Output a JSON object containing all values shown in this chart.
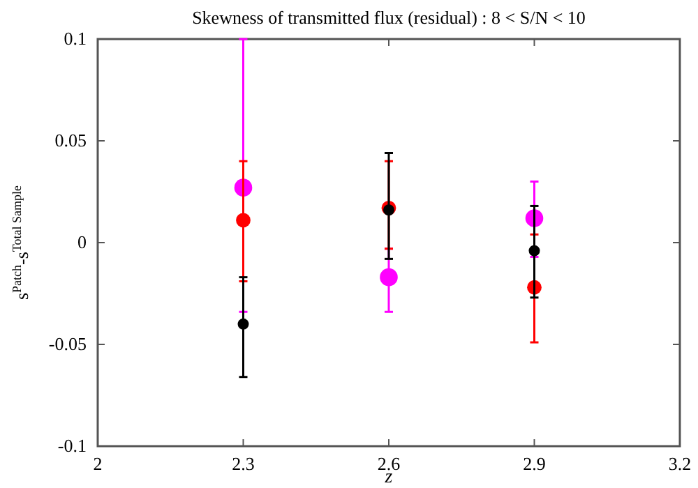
{
  "chart_data": {
    "type": "scatter",
    "title": "Skewness of transmitted flux (residual) : 8 < S/N < 10",
    "xlabel": "z",
    "ylabel": "s$^{Patch}$-s$^{Total Sample}$",
    "xlim": [
      2,
      3.2
    ],
    "xticks": [
      2,
      2.3,
      2.6,
      2.9,
      3.2
    ],
    "ylim": [
      -0.1,
      0.1
    ],
    "yticks": [
      -0.1,
      -0.05,
      0,
      0.05,
      0.1
    ],
    "grid": false,
    "marker": "circle",
    "series": [
      {
        "color": "#ff00ff",
        "x": [
          2.3,
          2.6,
          2.9
        ],
        "values": [
          0.027,
          -0.017,
          0.012
        ],
        "errors": [
          [
            -0.034,
            0.1
          ],
          [
            -0.034,
            -0.003
          ],
          [
            -0.007,
            0.03
          ]
        ]
      },
      {
        "color": "#ff0000",
        "x": [
          2.3,
          2.6,
          2.9
        ],
        "values": [
          0.011,
          0.017,
          -0.022
        ],
        "errors": [
          [
            -0.019,
            0.04
          ],
          [
            -0.003,
            0.04
          ],
          [
            -0.049,
            0.004
          ]
        ]
      },
      {
        "color": "#000000",
        "x": [
          2.3,
          2.6,
          2.9
        ],
        "values": [
          -0.04,
          0.016,
          -0.004
        ],
        "errors": [
          [
            -0.066,
            -0.017
          ],
          [
            -0.008,
            0.044
          ],
          [
            -0.027,
            0.018
          ]
        ]
      }
    ]
  }
}
